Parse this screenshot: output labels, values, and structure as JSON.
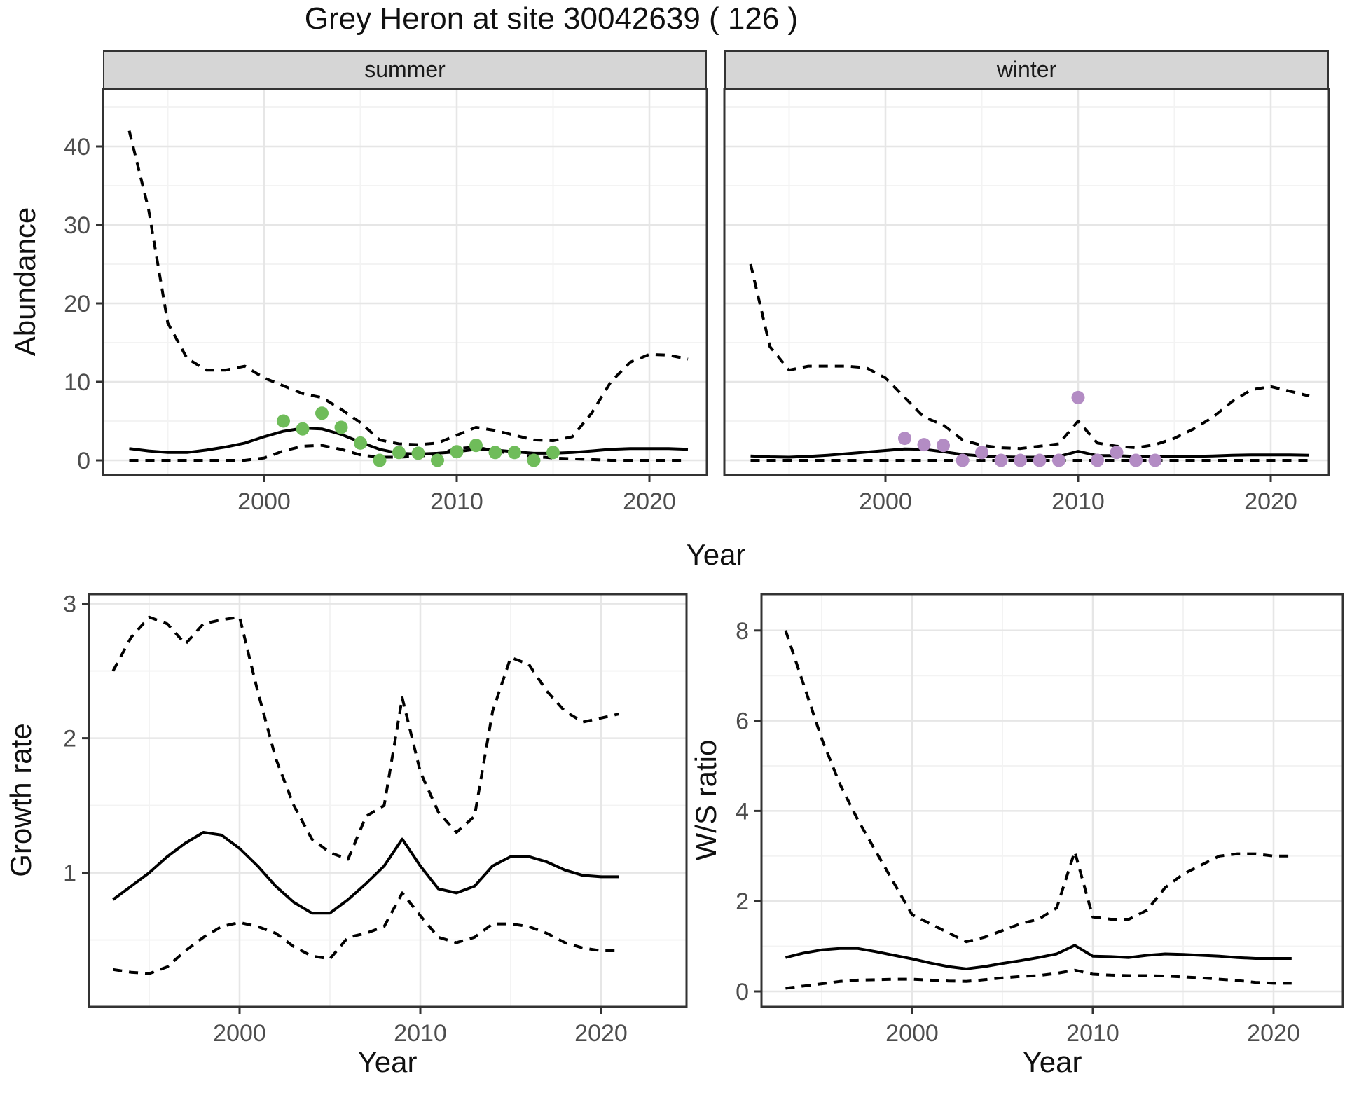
{
  "title": "Grey Heron at site 30042639 ( 126 )",
  "colors": {
    "observed_summer": "#6fbc5a",
    "observed_winter": "#b38cc4",
    "line": "#000000",
    "grid_major": "#e6e6e6",
    "grid_minor": "#f3f3f3",
    "panel_border": "#333333",
    "tick_text": "#4d4d4d",
    "strip_bg": "#d6d6d6"
  },
  "chart_data": [
    {
      "id": "abundance-summer",
      "type": "line",
      "facet_label": "summer",
      "title": "",
      "xlabel": "Year",
      "ylabel": "Abundance",
      "xlim": [
        1992,
        2023
      ],
      "ylim": [
        -1.9,
        47
      ],
      "xticks": [
        2000,
        2010,
        2020
      ],
      "xticks_minor": [
        1995,
        2005,
        2015
      ],
      "yticks": [
        0,
        10,
        20,
        30,
        40
      ],
      "yticks_minor": [
        5,
        15,
        25,
        35,
        45
      ],
      "grid": true,
      "legend": "none",
      "x": [
        1993,
        1994,
        1995,
        1996,
        1997,
        1998,
        1999,
        2000,
        2001,
        2002,
        2003,
        2004,
        2005,
        2006,
        2007,
        2008,
        2009,
        2010,
        2011,
        2012,
        2013,
        2014,
        2015,
        2016,
        2017,
        2018,
        2019,
        2020,
        2021,
        2022
      ],
      "series": [
        {
          "name": "upper 95% CI",
          "style": "dashed",
          "values": [
            42,
            32,
            17.5,
            13,
            11.5,
            11.5,
            12,
            10.5,
            9.5,
            8.5,
            8,
            6.5,
            4.8,
            2.6,
            2.1,
            2,
            2.2,
            3.2,
            4.2,
            3.8,
            3.2,
            2.6,
            2.5,
            3,
            6,
            10,
            12.5,
            13.5,
            13.4,
            12.9
          ]
        },
        {
          "name": "modelled mean",
          "style": "solid",
          "values": [
            1.5,
            1.2,
            1.0,
            1.0,
            1.3,
            1.7,
            2.2,
            3.0,
            3.7,
            4.1,
            4.0,
            3.3,
            2.3,
            1.4,
            0.9,
            0.8,
            0.9,
            1.1,
            1.4,
            1.3,
            1.1,
            0.9,
            0.9,
            1.0,
            1.2,
            1.4,
            1.5,
            1.5,
            1.5,
            1.4
          ]
        },
        {
          "name": "lower 95% CI",
          "style": "dashed",
          "values": [
            0,
            0,
            0,
            0,
            0,
            0,
            0,
            0.3,
            1.2,
            1.8,
            1.9,
            1.4,
            0.7,
            0.4,
            0.4,
            0.5,
            0.8,
            1.5,
            1.7,
            1.2,
            0.8,
            0.5,
            0.3,
            0.2,
            0.1,
            0,
            0,
            0,
            0,
            0
          ]
        }
      ],
      "points": {
        "name": "observed counts (summer)",
        "color": "#6fbc5a",
        "x": [
          2001,
          2002,
          2003,
          2004,
          2005,
          2006,
          2007,
          2008,
          2009,
          2010,
          2011,
          2012,
          2013,
          2014,
          2015
        ],
        "values": [
          5,
          4,
          6,
          4.2,
          2.2,
          0,
          1,
          0.9,
          0,
          1.1,
          1.9,
          1,
          1,
          0,
          1
        ]
      }
    },
    {
      "id": "abundance-winter",
      "type": "line",
      "facet_label": "winter",
      "title": "",
      "xlabel": "Year",
      "ylabel": "Abundance",
      "xlim": [
        1992,
        2023
      ],
      "ylim": [
        -1.9,
        47
      ],
      "xticks": [
        2000,
        2010,
        2020
      ],
      "xticks_minor": [
        1995,
        2005,
        2015
      ],
      "yticks": [
        0,
        10,
        20,
        30,
        40
      ],
      "yticks_minor": [
        5,
        15,
        25,
        35,
        45
      ],
      "grid": true,
      "legend": "none",
      "x": [
        1993,
        1994,
        1995,
        1996,
        1997,
        1998,
        1999,
        2000,
        2001,
        2002,
        2003,
        2004,
        2005,
        2006,
        2007,
        2008,
        2009,
        2010,
        2011,
        2012,
        2013,
        2014,
        2015,
        2016,
        2017,
        2018,
        2019,
        2020,
        2021,
        2022
      ],
      "series": [
        {
          "name": "upper 95% CI",
          "style": "dashed",
          "values": [
            25,
            14.5,
            11.5,
            12,
            12,
            12,
            11.8,
            10.5,
            8,
            5.5,
            4.5,
            2.6,
            1.9,
            1.6,
            1.5,
            1.8,
            2.1,
            5,
            2.2,
            1.8,
            1.6,
            2,
            2.8,
            4,
            5.5,
            7.5,
            9,
            9.4,
            8.8,
            8.2
          ]
        },
        {
          "name": "modelled mean",
          "style": "solid",
          "values": [
            0.55,
            0.45,
            0.4,
            0.5,
            0.65,
            0.85,
            1.05,
            1.25,
            1.45,
            1.4,
            1.1,
            0.75,
            0.55,
            0.45,
            0.4,
            0.4,
            0.5,
            1.15,
            0.6,
            0.6,
            0.5,
            0.45,
            0.45,
            0.5,
            0.55,
            0.65,
            0.7,
            0.7,
            0.7,
            0.65
          ]
        },
        {
          "name": "lower 95% CI",
          "style": "dashed",
          "values": [
            0,
            0,
            0,
            0,
            0,
            0,
            0,
            0,
            0,
            0,
            0,
            0,
            0,
            0,
            0,
            0,
            0,
            0,
            0,
            0,
            0,
            0,
            0,
            0,
            0,
            0,
            0,
            0,
            0,
            0
          ]
        }
      ],
      "points": {
        "name": "observed counts (winter)",
        "color": "#b38cc4",
        "x": [
          2001,
          2002,
          2003,
          2004,
          2005,
          2006,
          2007,
          2008,
          2009,
          2010,
          2011,
          2012,
          2013,
          2014
        ],
        "values": [
          2.8,
          2,
          1.9,
          0,
          1,
          0,
          0,
          0,
          0,
          8,
          0,
          1,
          0,
          0
        ]
      }
    },
    {
      "id": "growth-rate",
      "type": "line",
      "facet_label": "",
      "title": "",
      "xlabel": "Year",
      "ylabel": "Growth rate",
      "xlim": [
        1992,
        2025
      ],
      "ylim": [
        0,
        3.07
      ],
      "xticks": [
        2000,
        2010,
        2020
      ],
      "xticks_minor": [
        1995,
        2005,
        2015
      ],
      "yticks": [
        1,
        2,
        3
      ],
      "yticks_minor": [
        0.5,
        1.5,
        2.5
      ],
      "grid": true,
      "legend": "none",
      "x": [
        1993,
        1994,
        1995,
        1996,
        1997,
        1998,
        1999,
        2000,
        2001,
        2002,
        2003,
        2004,
        2005,
        2006,
        2007,
        2008,
        2009,
        2010,
        2011,
        2012,
        2013,
        2014,
        2015,
        2016,
        2017,
        2018,
        2019,
        2020,
        2021
      ],
      "series": [
        {
          "name": "upper 95% CI",
          "style": "dashed",
          "values": [
            2.5,
            2.75,
            2.9,
            2.85,
            2.7,
            2.85,
            2.88,
            2.9,
            2.35,
            1.85,
            1.5,
            1.25,
            1.15,
            1.1,
            1.42,
            1.5,
            2.3,
            1.75,
            1.45,
            1.3,
            1.42,
            2.2,
            2.6,
            2.55,
            2.35,
            2.2,
            2.12,
            2.15,
            2.18
          ]
        },
        {
          "name": "modelled mean",
          "style": "solid",
          "values": [
            0.8,
            0.9,
            1.0,
            1.12,
            1.22,
            1.3,
            1.28,
            1.18,
            1.05,
            0.9,
            0.78,
            0.7,
            0.7,
            0.8,
            0.92,
            1.05,
            1.25,
            1.05,
            0.88,
            0.85,
            0.9,
            1.05,
            1.12,
            1.12,
            1.08,
            1.02,
            0.98,
            0.97,
            0.97
          ]
        },
        {
          "name": "lower 95% CI",
          "style": "dashed",
          "values": [
            0.28,
            0.26,
            0.25,
            0.3,
            0.42,
            0.52,
            0.6,
            0.63,
            0.6,
            0.55,
            0.45,
            0.38,
            0.36,
            0.52,
            0.55,
            0.6,
            0.85,
            0.68,
            0.52,
            0.48,
            0.52,
            0.62,
            0.62,
            0.6,
            0.55,
            0.48,
            0.44,
            0.42,
            0.42
          ]
        }
      ],
      "points": null
    },
    {
      "id": "ws-ratio",
      "type": "line",
      "facet_label": "",
      "title": "",
      "xlabel": "Year",
      "ylabel": "W/S ratio",
      "xlim": [
        1992,
        2025
      ],
      "ylim": [
        -0.3,
        8.8
      ],
      "xticks": [
        2000,
        2010,
        2020
      ],
      "xticks_minor": [
        1995,
        2005,
        2015
      ],
      "yticks": [
        0,
        2,
        4,
        6,
        8
      ],
      "yticks_minor": [
        1,
        3,
        5,
        7
      ],
      "grid": true,
      "legend": "none",
      "x": [
        1993,
        1994,
        1995,
        1996,
        1997,
        1998,
        1999,
        2000,
        2001,
        2002,
        2003,
        2004,
        2005,
        2006,
        2007,
        2008,
        2009,
        2010,
        2011,
        2012,
        2013,
        2014,
        2015,
        2016,
        2017,
        2018,
        2019,
        2020,
        2021
      ],
      "series": [
        {
          "name": "upper 95% CI",
          "style": "dashed",
          "values": [
            8,
            6.8,
            5.6,
            4.6,
            3.8,
            3.1,
            2.4,
            1.7,
            1.5,
            1.3,
            1.1,
            1.2,
            1.35,
            1.5,
            1.6,
            1.85,
            3.1,
            1.65,
            1.6,
            1.6,
            1.8,
            2.3,
            2.6,
            2.8,
            3.0,
            3.05,
            3.05,
            3.0,
            3.0
          ]
        },
        {
          "name": "modelled mean",
          "style": "solid",
          "values": [
            0.75,
            0.85,
            0.92,
            0.95,
            0.95,
            0.88,
            0.8,
            0.72,
            0.63,
            0.55,
            0.5,
            0.55,
            0.62,
            0.68,
            0.75,
            0.83,
            1.02,
            0.78,
            0.77,
            0.75,
            0.8,
            0.83,
            0.82,
            0.8,
            0.78,
            0.75,
            0.73,
            0.73,
            0.73
          ]
        },
        {
          "name": "lower 95% CI",
          "style": "dashed",
          "values": [
            0.07,
            0.12,
            0.17,
            0.22,
            0.25,
            0.26,
            0.27,
            0.27,
            0.25,
            0.23,
            0.22,
            0.26,
            0.3,
            0.33,
            0.35,
            0.4,
            0.47,
            0.38,
            0.36,
            0.35,
            0.35,
            0.34,
            0.32,
            0.3,
            0.27,
            0.24,
            0.2,
            0.18,
            0.18
          ]
        }
      ],
      "points": null
    }
  ]
}
